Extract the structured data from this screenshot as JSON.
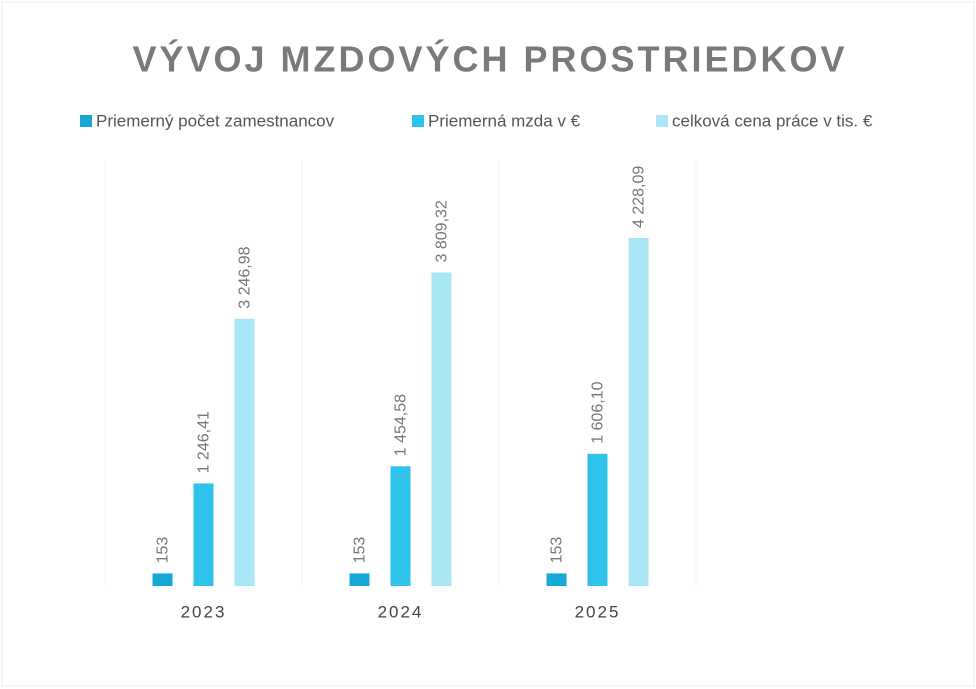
{
  "chart_data": {
    "type": "bar",
    "title": "VÝVOJ MZDOVÝCH PROSTRIEDKOV",
    "categories": [
      "2023",
      "2024",
      "2025"
    ],
    "series": [
      {
        "name": "Priemerný počet zamestnancov",
        "color": "#17a9d6",
        "values": [
          153,
          153,
          153
        ],
        "value_labels": [
          "153",
          "153",
          "153"
        ]
      },
      {
        "name": "Priemerná mzda v €",
        "color": "#2fc3ea",
        "values": [
          1246.41,
          1454.58,
          1606.1
        ],
        "value_labels": [
          "1 246,41",
          "1 454,58",
          "1 606,10"
        ]
      },
      {
        "name": "celková cena práce v tis. €",
        "color": "#a9e6f6",
        "values": [
          3246.98,
          3809.32,
          4228.09
        ],
        "value_labels": [
          "3 246,98",
          "3 809,32",
          "4 228,09"
        ]
      }
    ],
    "legend": "top"
  }
}
